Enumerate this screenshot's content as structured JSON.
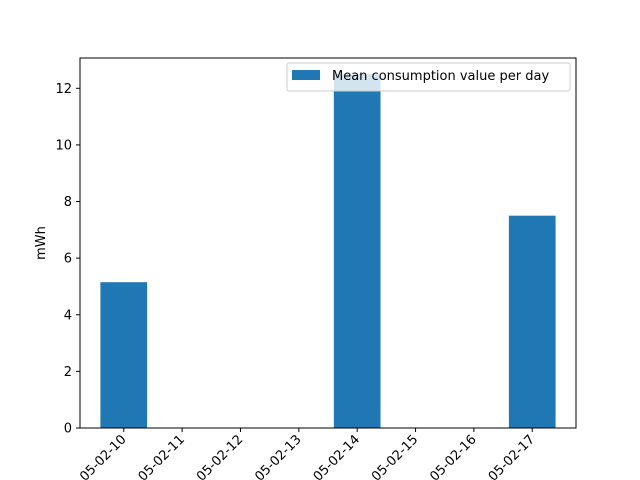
{
  "chart_data": {
    "type": "bar",
    "categories": [
      "2025-02-10",
      "2025-02-11",
      "2025-02-12",
      "2025-02-13",
      "2025-02-14",
      "2025-02-15",
      "2025-02-16",
      "2025-02-17"
    ],
    "values": [
      5.15,
      0,
      0,
      0,
      12.5,
      0,
      0,
      7.5
    ],
    "tick_labels": [
      "05-02-10",
      "05-02-11",
      "05-02-12",
      "05-02-13",
      "05-02-14",
      "05-02-15",
      "05-02-16",
      "05-02-17"
    ],
    "series": [
      {
        "name": "Mean consumption value per day",
        "color": "#1f77b4",
        "values": [
          5.15,
          0,
          0,
          0,
          12.5,
          0,
          0,
          7.5
        ]
      }
    ],
    "title": "",
    "xlabel": "",
    "ylabel": "mWh",
    "ylim": [
      0,
      13.07
    ],
    "yticks": [
      0,
      2,
      4,
      6,
      8,
      10,
      12
    ],
    "grid": false,
    "legend_position": "top-right",
    "x_tick_rotation": 45
  }
}
